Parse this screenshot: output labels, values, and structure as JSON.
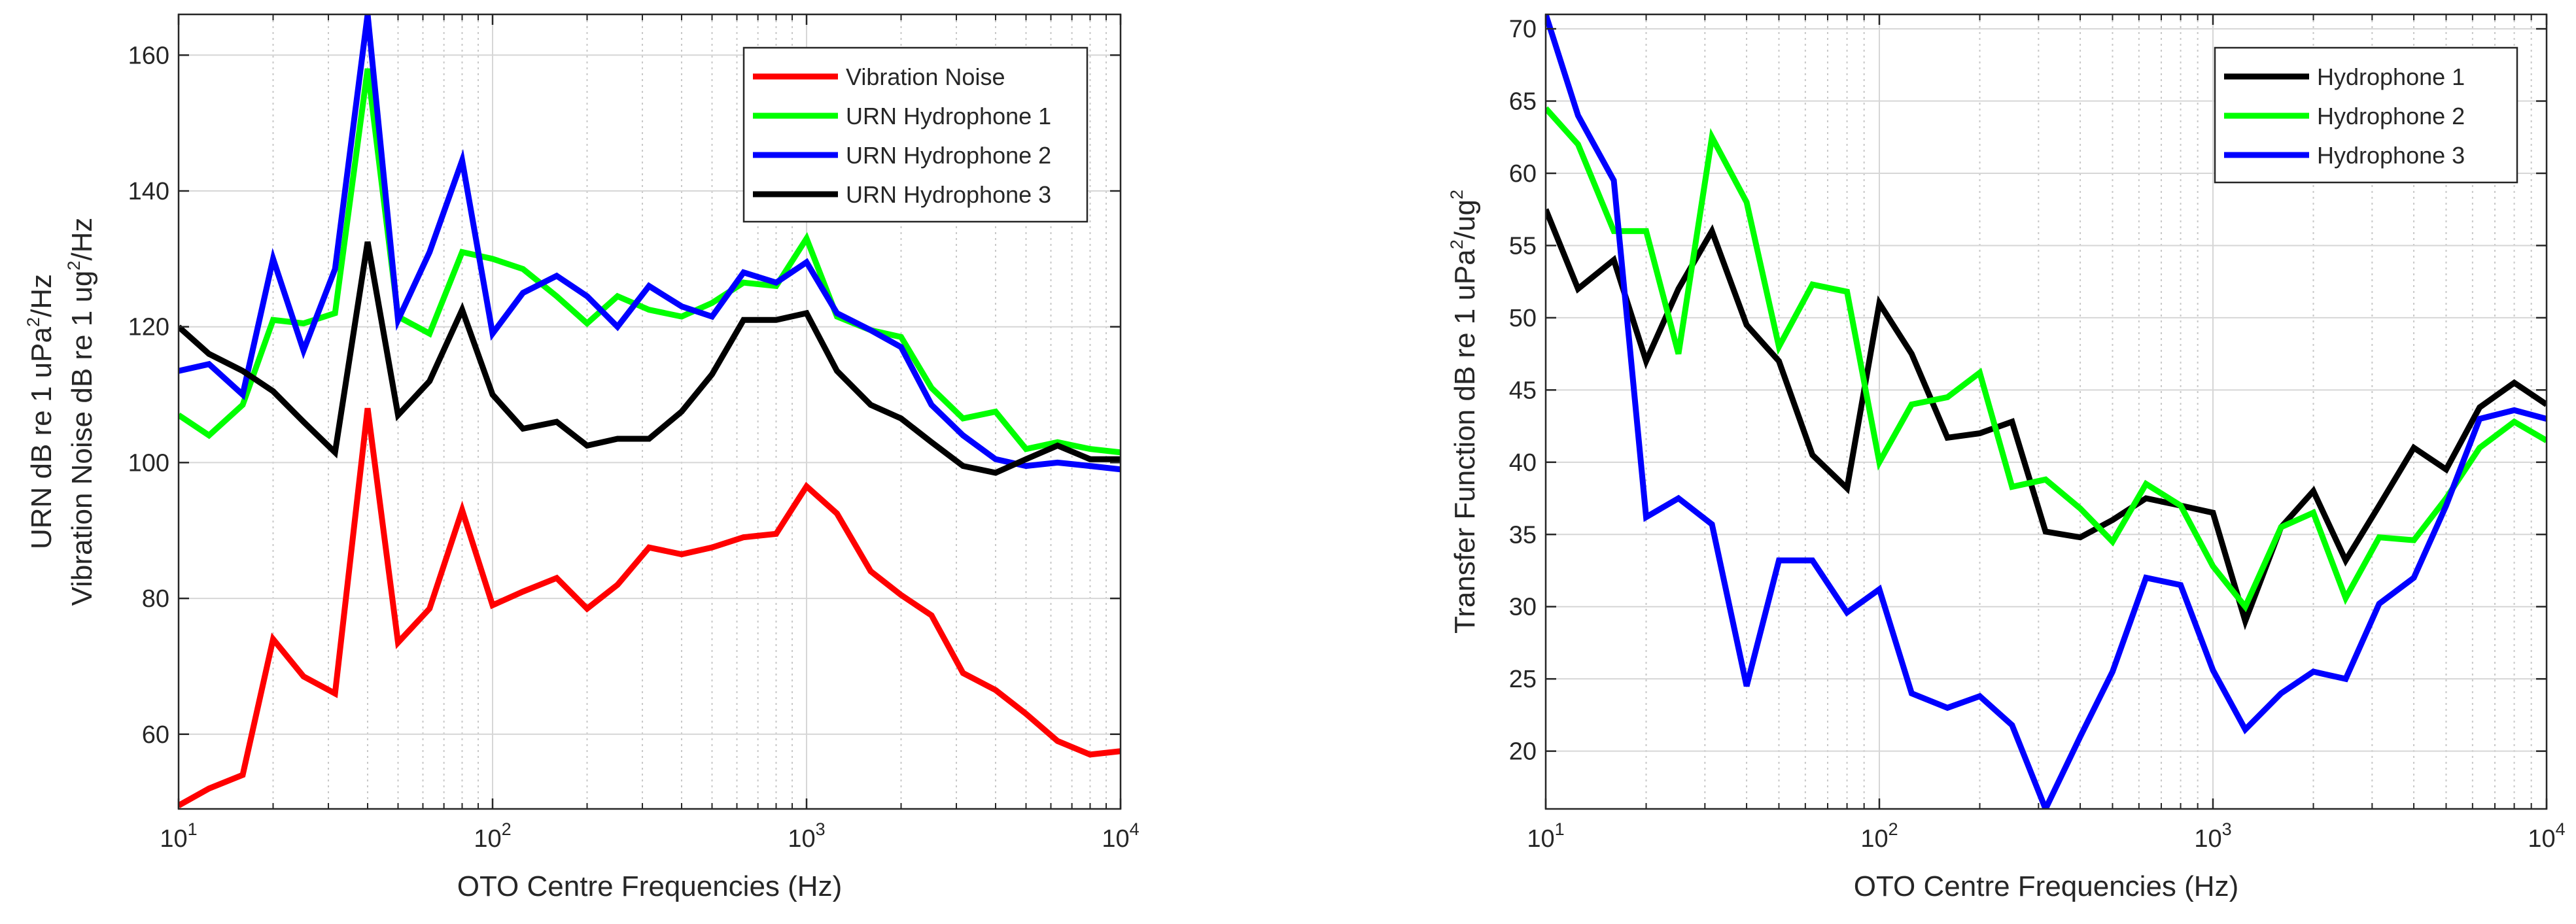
{
  "chart_data": [
    {
      "type": "line",
      "xscale": "log",
      "xlim": [
        10,
        10000
      ],
      "ylim": [
        49,
        166
      ],
      "grid": true,
      "title": "",
      "xlabel": "OTO Centre Frequencies (Hz)",
      "ylabel_lines": [
        [
          "URN dB re 1 uPa",
          "2",
          "/Hz"
        ],
        [
          "Vibration Noise dB re 1 ug",
          "2",
          "/Hz"
        ]
      ],
      "xtick_base": "10",
      "xticks": [
        {
          "value": 10,
          "exp": "1"
        },
        {
          "value": 100,
          "exp": "2"
        },
        {
          "value": 1000,
          "exp": "3"
        },
        {
          "value": 10000,
          "exp": "4"
        }
      ],
      "yticks": [
        "60",
        "80",
        "100",
        "120",
        "140",
        "160"
      ],
      "legend_position": "top-right",
      "x": [
        10,
        12.5,
        16,
        20,
        25,
        31.5,
        40,
        50,
        63,
        80,
        100,
        125,
        160,
        200,
        250,
        315,
        400,
        500,
        630,
        800,
        1000,
        1250,
        1600,
        2000,
        2500,
        3150,
        4000,
        5000,
        6300,
        8000,
        10000
      ],
      "series": [
        {
          "name": "Vibration Noise",
          "color": "#ff0000",
          "values": [
            49.5,
            52,
            54,
            74,
            68.5,
            66,
            108,
            73.5,
            78.5,
            93,
            79,
            81,
            83,
            78.5,
            82,
            87.5,
            86.5,
            87.5,
            89,
            89.5,
            96.5,
            92.5,
            84,
            80.5,
            77.5,
            69,
            66.5,
            63,
            59,
            57,
            57.5
          ]
        },
        {
          "name": "URN Hydrophone 1",
          "color": "#00ff00",
          "values": [
            107,
            104,
            108.5,
            121,
            120.5,
            122,
            158,
            121.5,
            119,
            131,
            130,
            128.5,
            124.5,
            120.5,
            124.5,
            122.5,
            121.5,
            123.5,
            126.5,
            126,
            133,
            121.5,
            119.5,
            118.5,
            111,
            106.5,
            107.5,
            102,
            103,
            102,
            101.5
          ]
        },
        {
          "name": "URN Hydrophone 2",
          "color": "#0000ff",
          "values": [
            113.5,
            114.5,
            110,
            130,
            116.5,
            128.5,
            166,
            121,
            131,
            144.5,
            119,
            125,
            127.5,
            124.5,
            120,
            126,
            123,
            121.5,
            128,
            126.5,
            129.5,
            122,
            119.5,
            117,
            108.5,
            104,
            100.5,
            99.5,
            100,
            99.5,
            99
          ]
        },
        {
          "name": "URN Hydrophone 3",
          "color": "#000000",
          "values": [
            120,
            116,
            113.5,
            110.5,
            106,
            101.5,
            132.5,
            107,
            112,
            122.5,
            110,
            105,
            106,
            102.5,
            103.5,
            103.5,
            107.5,
            113,
            121,
            121,
            122,
            113.5,
            108.5,
            106.5,
            103,
            99.5,
            98.5,
            100.5,
            102.5,
            100.5,
            100.5
          ]
        }
      ]
    },
    {
      "type": "line",
      "xscale": "log",
      "xlim": [
        10,
        10000
      ],
      "ylim": [
        16,
        71
      ],
      "grid": true,
      "title": "",
      "xlabel": "OTO Centre Frequencies (Hz)",
      "ylabel_lines": [
        [
          "Transfer Function dB re 1 uPa",
          "2",
          "/ug",
          "2"
        ]
      ],
      "xtick_base": "10",
      "xticks": [
        {
          "value": 10,
          "exp": "1"
        },
        {
          "value": 100,
          "exp": "2"
        },
        {
          "value": 1000,
          "exp": "3"
        },
        {
          "value": 10000,
          "exp": "4"
        }
      ],
      "yticks": [
        "20",
        "25",
        "30",
        "35",
        "40",
        "45",
        "50",
        "55",
        "60",
        "65",
        "70"
      ],
      "legend_position": "top-right",
      "x": [
        10,
        12.5,
        16,
        20,
        25,
        31.5,
        40,
        50,
        63,
        80,
        100,
        125,
        160,
        200,
        250,
        315,
        400,
        500,
        630,
        800,
        1000,
        1250,
        1600,
        2000,
        2500,
        3150,
        4000,
        5000,
        6300,
        8000,
        10000
      ],
      "series": [
        {
          "name": "Hydrophone 1",
          "color": "#000000",
          "values": [
            57.5,
            52,
            54,
            47,
            52,
            56,
            49.5,
            47,
            40.5,
            38.2,
            51,
            47.5,
            41.7,
            42,
            42.8,
            35.2,
            34.8,
            36,
            37.5,
            37,
            36.5,
            29,
            35.5,
            38,
            33.2,
            37,
            41,
            39.5,
            43.8,
            45.5,
            44
          ]
        },
        {
          "name": "Hydrophone 2",
          "color": "#00ff00",
          "values": [
            64.5,
            62,
            56,
            56,
            47.5,
            62.5,
            58,
            48,
            52.3,
            51.8,
            40,
            44,
            44.5,
            46.2,
            38.3,
            38.8,
            36.8,
            34.5,
            38.5,
            37,
            32.8,
            30,
            35.5,
            36.5,
            30.6,
            34.8,
            34.6,
            37.5,
            41,
            42.8,
            41.5
          ]
        },
        {
          "name": "Hydrophone 3",
          "color": "#0000ff",
          "values": [
            71,
            64,
            59.5,
            36.2,
            37.5,
            35.7,
            24.5,
            33.2,
            33.2,
            29.6,
            31.2,
            24,
            23,
            23.8,
            21.8,
            16,
            21,
            25.5,
            32,
            31.5,
            25.6,
            21.5,
            24,
            25.5,
            25,
            30.2,
            32,
            37,
            43,
            43.6,
            43
          ]
        }
      ]
    }
  ]
}
